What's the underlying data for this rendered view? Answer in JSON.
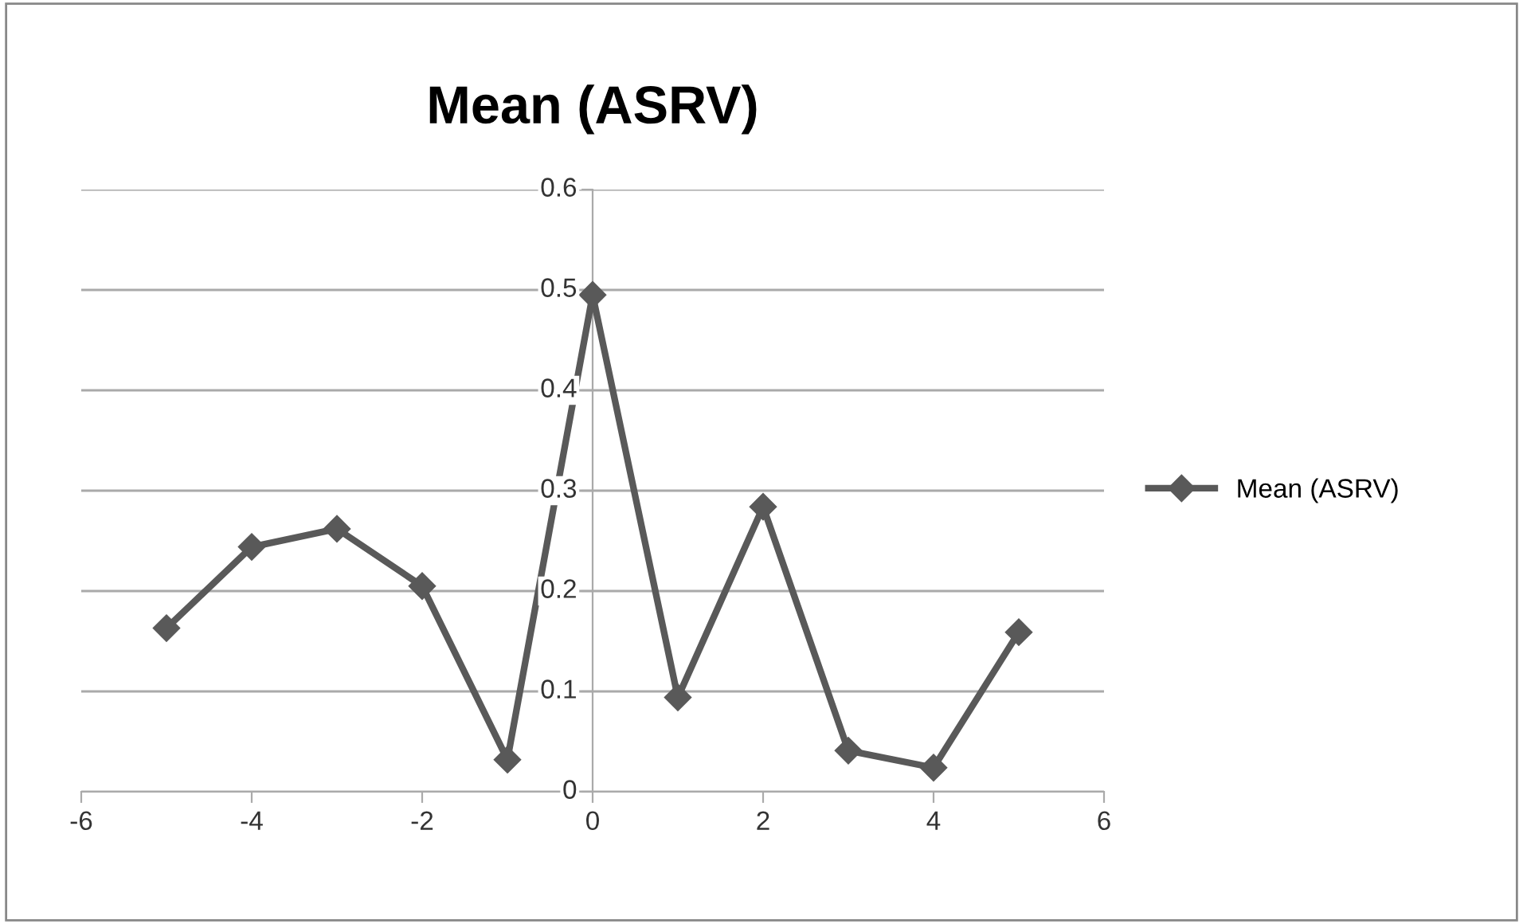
{
  "chart_data": {
    "type": "line",
    "title": "Mean (ASRV)",
    "x": [
      -5,
      -4,
      -3,
      -2,
      -1,
      0,
      1,
      2,
      3,
      4,
      5
    ],
    "series": [
      {
        "name": "Mean (ASRV)",
        "color": "#595959",
        "values": [
          0.163,
          0.244,
          0.262,
          0.205,
          0.032,
          0.495,
          0.094,
          0.284,
          0.041,
          0.024,
          0.159
        ]
      }
    ],
    "xlim": [
      -6,
      6
    ],
    "xticks": [
      -6,
      -4,
      -2,
      0,
      2,
      4,
      6
    ],
    "ylim": [
      0,
      0.6
    ],
    "yticks": [
      0,
      0.1,
      0.2,
      0.3,
      0.4,
      0.5,
      0.6
    ],
    "grid": "y",
    "legend": "right",
    "marker": "diamond",
    "line_style": "solid"
  }
}
